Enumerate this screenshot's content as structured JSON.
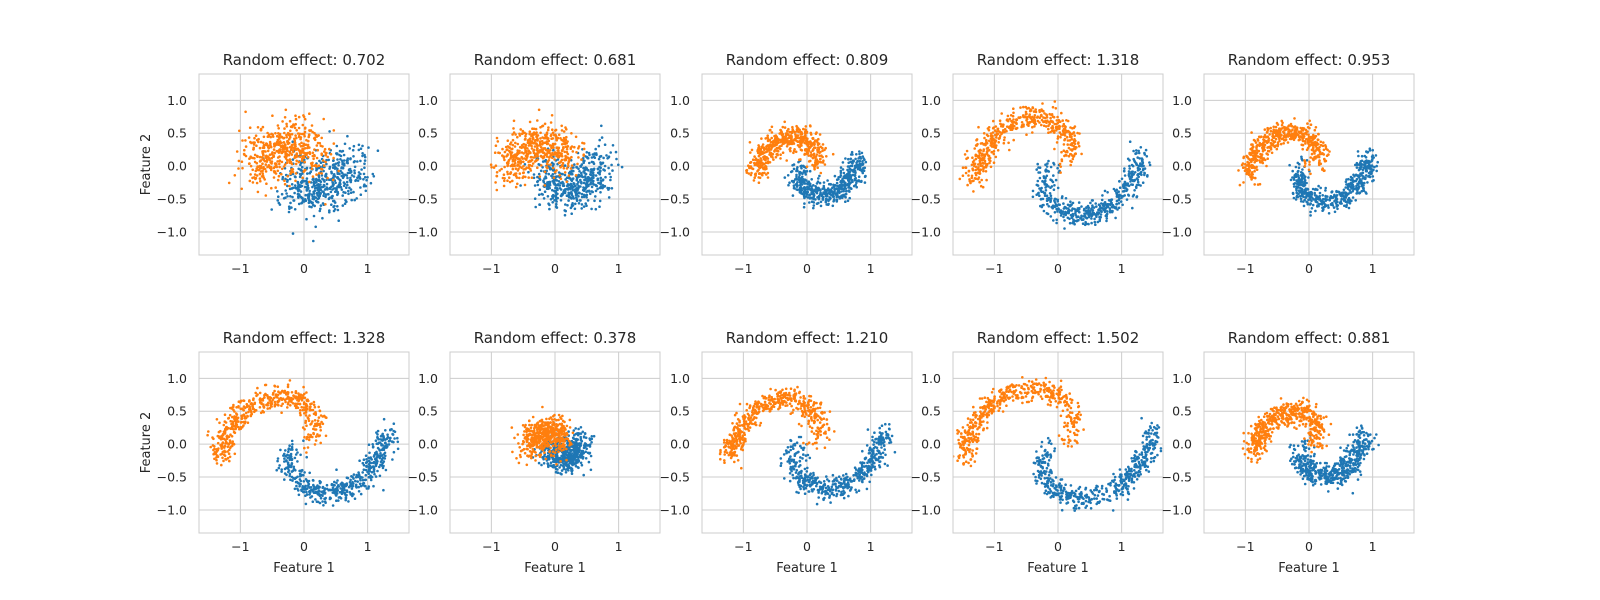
{
  "chart_data": {
    "type": "scatter",
    "layout": {
      "rows": 2,
      "cols": 5
    },
    "xlabel": "Feature 1",
    "ylabel": "Feature 2",
    "xlim": [
      -1.65,
      1.65
    ],
    "ylim": [
      -1.35,
      1.4
    ],
    "xticks": [
      -1,
      0,
      1
    ],
    "yticks": [
      -1.0,
      -0.5,
      0.0,
      0.5,
      1.0
    ],
    "grid": true,
    "title_prefix": "Random effect: ",
    "colors": {
      "class_0": "#1f77b4",
      "class_1": "#ff7f0e"
    },
    "points_per_class": 500,
    "panels": [
      {
        "random_effect": "0.702",
        "effect": 0.702,
        "spread": 0.2
      },
      {
        "random_effect": "0.681",
        "effect": 0.681,
        "spread": 0.16
      },
      {
        "random_effect": "0.809",
        "effect": 0.809,
        "spread": 0.09
      },
      {
        "random_effect": "1.318",
        "effect": 1.318,
        "spread": 0.09
      },
      {
        "random_effect": "0.953",
        "effect": 0.953,
        "spread": 0.08
      },
      {
        "random_effect": "1.328",
        "effect": 1.328,
        "spread": 0.09
      },
      {
        "random_effect": "0.378",
        "effect": 0.378,
        "spread": 0.12
      },
      {
        "random_effect": "1.210",
        "effect": 1.21,
        "spread": 0.09
      },
      {
        "random_effect": "1.502",
        "effect": 1.502,
        "spread": 0.08
      },
      {
        "random_effect": "0.881",
        "effect": 0.881,
        "spread": 0.09
      }
    ]
  }
}
